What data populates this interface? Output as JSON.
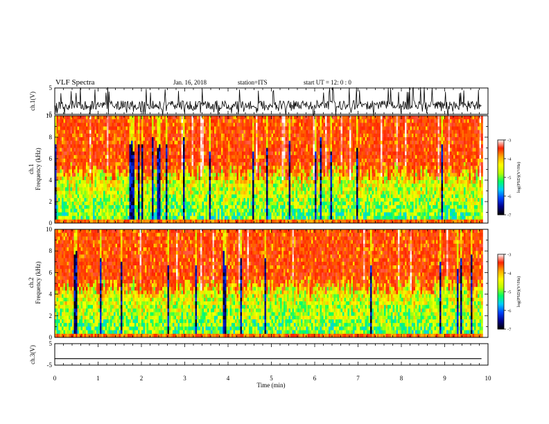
{
  "header": {
    "title": "VLF Spectra",
    "date": "Jan. 16, 2018",
    "station": "station=ITS",
    "start": "start UT = 12: 0 : 0"
  },
  "chart_data": [
    {
      "type": "line",
      "panel": "ch1-waveform",
      "ylabel": "ch.1(V)",
      "yticks": [
        "5",
        "-5"
      ],
      "ylim": [
        -5,
        5
      ],
      "xlim": [
        0,
        10
      ],
      "series": [
        {
          "values_description_free": true
        }
      ],
      "data_end_min": 9.85
    },
    {
      "type": "heatmap",
      "panel": "ch1-spectrogram",
      "ylabel": "ch.1 Frequency (kHz)",
      "yticks": [
        "0",
        "2",
        "4",
        "6",
        "8",
        "10"
      ],
      "ylim": [
        0,
        10
      ],
      "xlim": [
        0,
        10
      ],
      "colorbar": {
        "label": "log(PSD)(V²/Hz)",
        "ticks": [
          "-3",
          "-4",
          "-5",
          "-6",
          "-7"
        ],
        "range": [
          -7,
          -3
        ]
      }
    },
    {
      "type": "heatmap",
      "panel": "ch2-spectrogram",
      "ylabel": "ch.2 Frequency (kHz)",
      "yticks": [
        "0",
        "2",
        "4",
        "6",
        "8",
        "10"
      ],
      "ylim": [
        0,
        10
      ],
      "xlim": [
        0,
        10
      ],
      "colorbar": {
        "label": "log(PSD)(V²/Hz)",
        "ticks": [
          "-3",
          "-4",
          "-5",
          "-6",
          "-7"
        ],
        "range": [
          -7,
          -3
        ]
      }
    },
    {
      "type": "line",
      "panel": "ch3-waveform",
      "ylabel": "ch.3(V)",
      "yticks": [
        "5",
        "-5"
      ],
      "ylim": [
        -5,
        5
      ],
      "xlim": [
        0,
        10
      ],
      "level": -2
    }
  ],
  "xaxis": {
    "label": "Time (min)",
    "ticks": [
      "0",
      "1",
      "2",
      "3",
      "4",
      "5",
      "6",
      "7",
      "8",
      "9",
      "10"
    ]
  },
  "colors": {
    "ramp": [
      "#000000",
      "#00008c",
      "#0044ff",
      "#00ccff",
      "#00ff66",
      "#bbff00",
      "#ffff00",
      "#ffaa00",
      "#ff2200",
      "#ffffff"
    ]
  }
}
